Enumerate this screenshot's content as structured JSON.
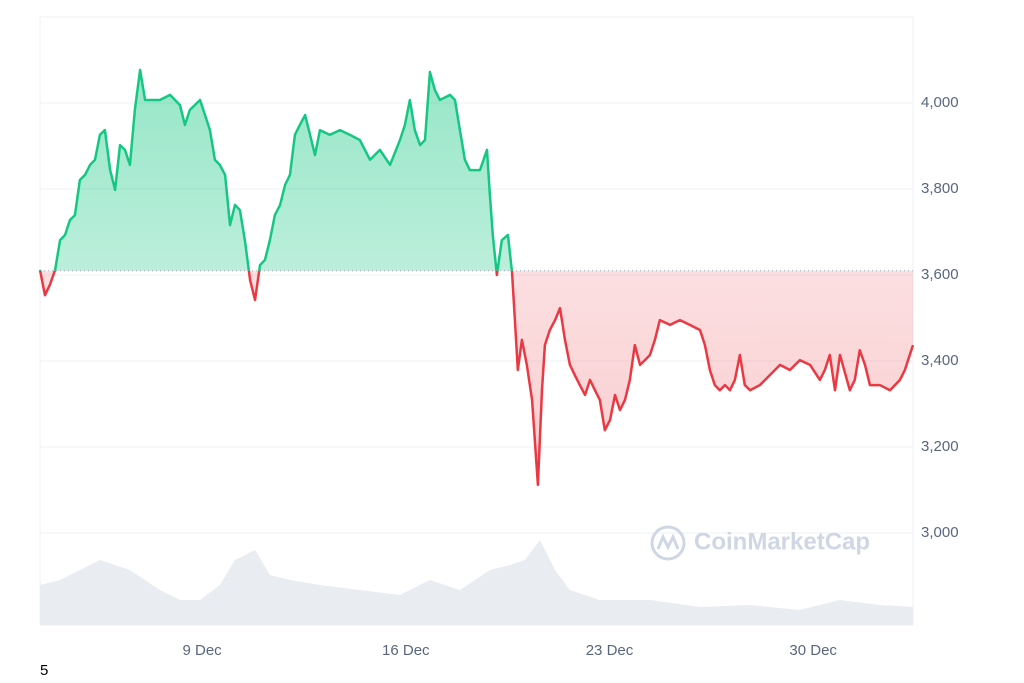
{
  "chart_data": {
    "type": "line",
    "x": [
      3.43,
      3.6,
      3.77,
      3.95,
      4.12,
      4.29,
      4.46,
      4.63,
      4.8,
      4.98,
      5.15,
      5.32,
      5.49,
      5.66,
      5.84,
      6.01,
      6.18,
      6.35,
      6.52,
      6.69,
      6.87,
      7.04,
      7.21,
      7.55,
      7.9,
      8.24,
      8.41,
      8.58,
      8.93,
      9.1,
      9.27,
      9.44,
      9.61,
      9.79,
      9.96,
      10.13,
      10.3,
      10.47,
      10.65,
      10.82,
      10.99,
      11.16,
      11.33,
      11.5,
      11.68,
      11.85,
      12.02,
      12.19,
      12.36,
      12.54,
      12.71,
      12.88,
      13.05,
      13.39,
      13.74,
      14.08,
      14.42,
      14.77,
      15.11,
      15.46,
      15.8,
      15.97,
      16.14,
      16.31,
      16.49,
      16.66,
      16.83,
      17.0,
      17.17,
      17.52,
      17.69,
      17.86,
      18.03,
      18.2,
      18.55,
      18.79,
      18.89,
      18.99,
      19.13,
      19.3,
      19.51,
      19.65,
      19.75,
      19.85,
      19.99,
      20.16,
      20.34,
      20.54,
      20.68,
      20.78,
      20.95,
      21.13,
      21.3,
      21.47,
      21.64,
      21.81,
      21.98,
      22.16,
      22.33,
      22.5,
      22.67,
      22.84,
      23.02,
      23.19,
      23.36,
      23.53,
      23.7,
      23.87,
      24.05,
      24.22,
      24.39,
      24.56,
      24.73,
      25.08,
      25.42,
      25.76,
      26.11,
      26.28,
      26.45,
      26.62,
      26.79,
      26.97,
      27.14,
      27.31,
      27.48,
      27.65,
      27.83,
      28.17,
      28.51,
      28.86,
      29.2,
      29.54,
      29.89,
      30.23,
      30.4,
      30.57,
      30.75,
      30.92,
      31.26,
      31.43,
      31.6,
      31.78,
      31.95,
      32.29,
      32.64,
      32.98,
      33.15,
      33.43
    ],
    "series": [
      {
        "values": [
          3612,
          3553,
          3577,
          3612,
          3681,
          3693,
          3728,
          3739,
          3821,
          3833,
          3856,
          3868,
          3926,
          3937,
          3844,
          3798,
          3902,
          3891,
          3856,
          3984,
          4077,
          4007,
          4007,
          4007,
          4019,
          3995,
          3949,
          3984,
          4007,
          3972,
          3937,
          3868,
          3856,
          3833,
          3716,
          3763,
          3751,
          3681,
          3588,
          3542,
          3623,
          3635,
          3681,
          3739,
          3763,
          3809,
          3833,
          3926,
          3949,
          3972,
          3926,
          3879,
          3937,
          3926,
          3937,
          3926,
          3914,
          3868,
          3891,
          3856,
          3914,
          3949,
          4007,
          3937,
          3902,
          3914,
          4072,
          4030,
          4007,
          4019,
          4007,
          3937,
          3868,
          3844,
          3844,
          3891,
          3786,
          3693,
          3600,
          3681,
          3693,
          3607,
          3495,
          3379,
          3449,
          3391,
          3309,
          3112,
          3332,
          3437,
          3472,
          3495,
          3523,
          3449,
          3391,
          3367,
          3344,
          3321,
          3356,
          3332,
          3309,
          3239,
          3263,
          3321,
          3286,
          3309,
          3356,
          3437,
          3391,
          3402,
          3414,
          3449,
          3495,
          3484,
          3495,
          3484,
          3472,
          3437,
          3379,
          3344,
          3332,
          3344,
          3332,
          3356,
          3414,
          3344,
          3332,
          3344,
          3367,
          3391,
          3379,
          3402,
          3391,
          3356,
          3379,
          3414,
          3332,
          3414,
          3332,
          3356,
          3425,
          3391,
          3344,
          3344,
          3332,
          3356,
          3379,
          3437
        ],
        "color": "#16c784",
        "color_below": "#ea3943"
      }
    ],
    "baseline": 3610,
    "volume": {
      "x": [
        3.43,
        4.12,
        5.15,
        5.49,
        6.52,
        7.55,
        8.24,
        8.93,
        9.61,
        10.13,
        10.82,
        11.33,
        12.02,
        13.05,
        14.42,
        15.8,
        16.83,
        17.86,
        18.89,
        19.58,
        20.09,
        20.61,
        21.13,
        21.64,
        22.67,
        24.39,
        26.11,
        27.83,
        29.54,
        30.92,
        32.29,
        33.43
      ],
      "values": [
        40,
        45,
        60,
        65,
        55,
        35,
        25,
        25,
        40,
        65,
        75,
        50,
        45,
        40,
        35,
        30,
        45,
        35,
        55,
        60,
        65,
        85,
        55,
        35,
        25,
        25,
        18,
        20,
        15,
        25,
        20,
        18
      ],
      "color": "#e9ecf1"
    },
    "xlim": [
      3.43,
      33.43
    ],
    "xticks": [
      {
        "value": 9,
        "label": "9 Dec"
      },
      {
        "value": 16,
        "label": "16 Dec"
      },
      {
        "value": 23,
        "label": "23 Dec"
      },
      {
        "value": 30,
        "label": "30 Dec"
      }
    ],
    "ylim": [
      2786,
      4200
    ],
    "yticks": [
      {
        "value": 3000,
        "label": "3,000"
      },
      {
        "value": 3200,
        "label": "3,200"
      },
      {
        "value": 3400,
        "label": "3,400"
      },
      {
        "value": 3600,
        "label": "3,600"
      },
      {
        "value": 3800,
        "label": "3,800"
      },
      {
        "value": 4000,
        "label": "4,000"
      }
    ],
    "grid": true,
    "watermark": "CoinMarketCap"
  },
  "footer": "5"
}
